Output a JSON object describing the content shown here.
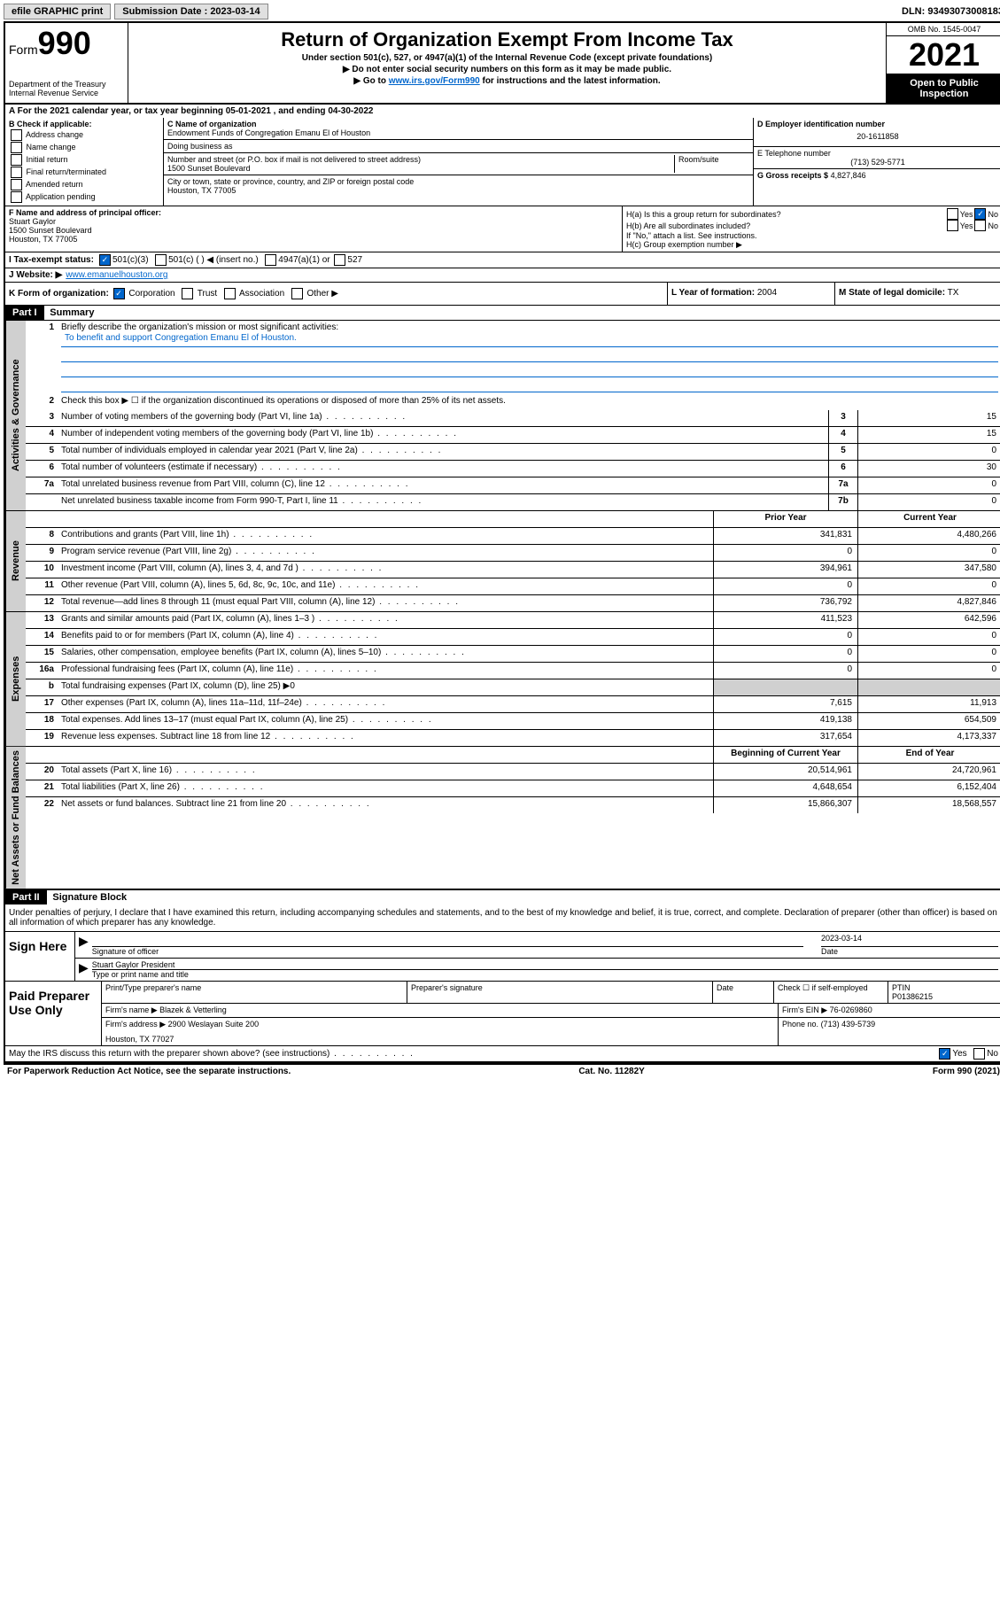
{
  "top": {
    "efile": "efile GRAPHIC print",
    "submission": "Submission Date : 2023-03-14",
    "dln": "DLN: 93493073008183"
  },
  "header": {
    "form_label": "Form",
    "form_no": "990",
    "dept": "Department of the Treasury",
    "irs": "Internal Revenue Service",
    "title": "Return of Organization Exempt From Income Tax",
    "sub1": "Under section 501(c), 527, or 4947(a)(1) of the Internal Revenue Code (except private foundations)",
    "sub2": "▶ Do not enter social security numbers on this form as it may be made public.",
    "sub3_pre": "▶ Go to ",
    "sub3_link": "www.irs.gov/Form990",
    "sub3_post": " for instructions and the latest information.",
    "omb": "OMB No. 1545-0047",
    "year": "2021",
    "open": "Open to Public Inspection"
  },
  "A": {
    "text": "A For the 2021 calendar year, or tax year beginning 05-01-2021  , and ending 04-30-2022"
  },
  "B": {
    "hdr": "B Check if applicable:",
    "opts": [
      "Address change",
      "Name change",
      "Initial return",
      "Final return/terminated",
      "Amended return",
      "Application pending"
    ]
  },
  "C": {
    "name_lbl": "C Name of organization",
    "name": "Endowment Funds of Congregation Emanu El of Houston",
    "dba_lbl": "Doing business as",
    "addr_lbl": "Number and street (or P.O. box if mail is not delivered to street address)",
    "room_lbl": "Room/suite",
    "addr": "1500 Sunset Boulevard",
    "city_lbl": "City or town, state or province, country, and ZIP or foreign postal code",
    "city": "Houston, TX  77005"
  },
  "D": {
    "lbl": "D Employer identification number",
    "val": "20-1611858"
  },
  "E": {
    "lbl": "E Telephone number",
    "val": "(713) 529-5771"
  },
  "G": {
    "lbl": "G Gross receipts $",
    "val": "4,827,846"
  },
  "F": {
    "lbl": "F  Name and address of principal officer:",
    "name": "Stuart Gaylor",
    "addr": "1500 Sunset Boulevard",
    "city": "Houston, TX  77005"
  },
  "H": {
    "a": "H(a)  Is this a group return for subordinates?",
    "b": "H(b)  Are all subordinates included?",
    "b_note": "If \"No,\" attach a list. See instructions.",
    "c": "H(c)  Group exemption number ▶",
    "yes": "Yes",
    "no": "No"
  },
  "I": {
    "lbl": "I  Tax-exempt status:",
    "o1": "501(c)(3)",
    "o2": "501(c) (  ) ◀ (insert no.)",
    "o3": "4947(a)(1) or",
    "o4": "527"
  },
  "J": {
    "lbl": "J  Website: ▶",
    "val": "www.emanuelhouston.org"
  },
  "K": {
    "lbl": "K Form of organization:",
    "o1": "Corporation",
    "o2": "Trust",
    "o3": "Association",
    "o4": "Other ▶"
  },
  "L": {
    "lbl": "L Year of formation:",
    "val": "2004"
  },
  "M": {
    "lbl": "M State of legal domicile:",
    "val": "TX"
  },
  "part1": {
    "hdr": "Part I",
    "title": "Summary",
    "q1": "Briefly describe the organization's mission or most significant activities:",
    "mission": "To benefit and support Congregation Emanu El of Houston.",
    "q2": "Check this box ▶ ☐  if the organization discontinued its operations or disposed of more than 25% of its net assets.",
    "prior": "Prior Year",
    "current": "Current Year",
    "begin": "Beginning of Current Year",
    "end": "End of Year",
    "rows_gov": [
      {
        "n": "3",
        "t": "Number of voting members of the governing body (Part VI, line 1a)",
        "r": "3",
        "v": "15"
      },
      {
        "n": "4",
        "t": "Number of independent voting members of the governing body (Part VI, line 1b)",
        "r": "4",
        "v": "15"
      },
      {
        "n": "5",
        "t": "Total number of individuals employed in calendar year 2021 (Part V, line 2a)",
        "r": "5",
        "v": "0"
      },
      {
        "n": "6",
        "t": "Total number of volunteers (estimate if necessary)",
        "r": "6",
        "v": "30"
      },
      {
        "n": "7a",
        "t": "Total unrelated business revenue from Part VIII, column (C), line 12",
        "r": "7a",
        "v": "0"
      },
      {
        "n": "",
        "t": "Net unrelated business taxable income from Form 990-T, Part I, line 11",
        "r": "7b",
        "v": "0"
      }
    ],
    "rows_rev": [
      {
        "n": "8",
        "t": "Contributions and grants (Part VIII, line 1h)",
        "p": "341,831",
        "c": "4,480,266"
      },
      {
        "n": "9",
        "t": "Program service revenue (Part VIII, line 2g)",
        "p": "0",
        "c": "0"
      },
      {
        "n": "10",
        "t": "Investment income (Part VIII, column (A), lines 3, 4, and 7d )",
        "p": "394,961",
        "c": "347,580"
      },
      {
        "n": "11",
        "t": "Other revenue (Part VIII, column (A), lines 5, 6d, 8c, 9c, 10c, and 11e)",
        "p": "0",
        "c": "0"
      },
      {
        "n": "12",
        "t": "Total revenue—add lines 8 through 11 (must equal Part VIII, column (A), line 12)",
        "p": "736,792",
        "c": "4,827,846"
      }
    ],
    "rows_exp": [
      {
        "n": "13",
        "t": "Grants and similar amounts paid (Part IX, column (A), lines 1–3 )",
        "p": "411,523",
        "c": "642,596"
      },
      {
        "n": "14",
        "t": "Benefits paid to or for members (Part IX, column (A), line 4)",
        "p": "0",
        "c": "0"
      },
      {
        "n": "15",
        "t": "Salaries, other compensation, employee benefits (Part IX, column (A), lines 5–10)",
        "p": "0",
        "c": "0"
      },
      {
        "n": "16a",
        "t": "Professional fundraising fees (Part IX, column (A), line 11e)",
        "p": "0",
        "c": "0"
      },
      {
        "n": "b",
        "t": "Total fundraising expenses (Part IX, column (D), line 25) ▶0",
        "p": "",
        "c": "",
        "shade": true
      },
      {
        "n": "17",
        "t": "Other expenses (Part IX, column (A), lines 11a–11d, 11f–24e)",
        "p": "7,615",
        "c": "11,913"
      },
      {
        "n": "18",
        "t": "Total expenses. Add lines 13–17 (must equal Part IX, column (A), line 25)",
        "p": "419,138",
        "c": "654,509"
      },
      {
        "n": "19",
        "t": "Revenue less expenses. Subtract line 18 from line 12",
        "p": "317,654",
        "c": "4,173,337"
      }
    ],
    "rows_net": [
      {
        "n": "20",
        "t": "Total assets (Part X, line 16)",
        "p": "20,514,961",
        "c": "24,720,961"
      },
      {
        "n": "21",
        "t": "Total liabilities (Part X, line 26)",
        "p": "4,648,654",
        "c": "6,152,404"
      },
      {
        "n": "22",
        "t": "Net assets or fund balances. Subtract line 21 from line 20",
        "p": "15,866,307",
        "c": "18,568,557"
      }
    ]
  },
  "part2": {
    "hdr": "Part II",
    "title": "Signature Block",
    "decl": "Under penalties of perjury, I declare that I have examined this return, including accompanying schedules and statements, and to the best of my knowledge and belief, it is true, correct, and complete. Declaration of preparer (other than officer) is based on all information of which preparer has any knowledge.",
    "sign_here": "Sign Here",
    "sig_officer": "Signature of officer",
    "sig_date": "2023-03-14",
    "date_lbl": "Date",
    "name_title": "Stuart Gaylor President",
    "name_title_lbl": "Type or print name and title",
    "paid": "Paid Preparer Use Only",
    "prep_name_lbl": "Print/Type preparer's name",
    "prep_sig_lbl": "Preparer's signature",
    "check_lbl": "Check ☐ if self-employed",
    "ptin_lbl": "PTIN",
    "ptin": "P01386215",
    "firm_name_lbl": "Firm's name   ▶",
    "firm_name": "Blazek & Vetterling",
    "firm_ein_lbl": "Firm's EIN ▶",
    "firm_ein": "76-0269860",
    "firm_addr_lbl": "Firm's address ▶",
    "firm_addr": "2900 Weslayan Suite 200",
    "firm_city": "Houston, TX  77027",
    "phone_lbl": "Phone no.",
    "phone": "(713) 439-5739",
    "discuss": "May the IRS discuss this return with the preparer shown above? (see instructions)",
    "yes": "Yes",
    "no": "No"
  },
  "footer": {
    "pra": "For Paperwork Reduction Act Notice, see the separate instructions.",
    "cat": "Cat. No. 11282Y",
    "form": "Form 990 (2021)"
  },
  "tabs": {
    "gov": "Activities & Governance",
    "rev": "Revenue",
    "exp": "Expenses",
    "net": "Net Assets or Fund Balances"
  }
}
